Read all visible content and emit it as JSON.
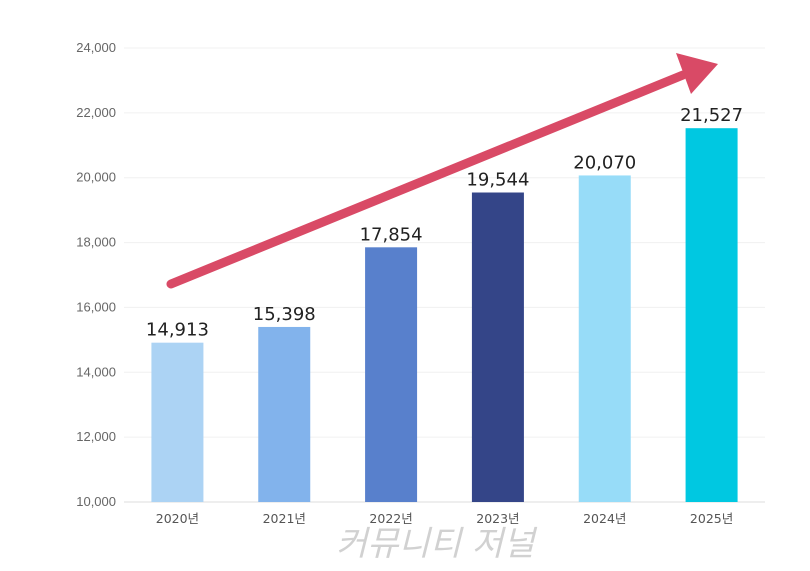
{
  "chart_data": {
    "type": "bar",
    "categories": [
      "2020년",
      "2021년",
      "2022년",
      "2023년",
      "2024년",
      "2025년"
    ],
    "values": [
      14913,
      15398,
      17854,
      19544,
      20070,
      21527
    ],
    "value_labels": [
      "14,913",
      "15,398",
      "17,854",
      "19,544",
      "20,070",
      "21,527"
    ],
    "colors": [
      "#acd3f4",
      "#82b3ec",
      "#5880cc",
      "#344588",
      "#97dcf8",
      "#00c8e1"
    ],
    "ylim": [
      10000,
      24000
    ],
    "yticks": [
      10000,
      12000,
      14000,
      16000,
      18000,
      20000,
      22000,
      24000
    ],
    "ytick_labels": [
      "10,000",
      "12,000",
      "14,000",
      "16,000",
      "18,000",
      "20,000",
      "22,000",
      "24,000"
    ],
    "grid": true,
    "legend": "none",
    "trend_arrow_color": "#d94a66"
  },
  "watermark": "커뮤니티 저널"
}
